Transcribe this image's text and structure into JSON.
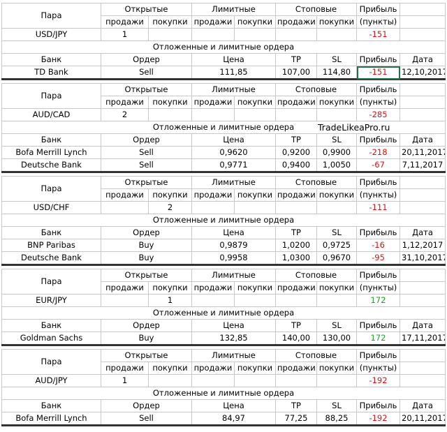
{
  "headers": {
    "pair": "Пара",
    "open": "Открытые",
    "limit": "Лимитные",
    "stop": "Стоповые",
    "profit": "Прибыль",
    "sell": "продажи",
    "buy": "покупки",
    "points": "(пункты)",
    "orders_title": "Отложенные и лимитные ордера",
    "bank": "Банк",
    "order": "Ордер",
    "price": "Цена",
    "tp": "TP",
    "sl": "SL",
    "date": "Дата"
  },
  "watermark": "TradeLikeaPro.ru",
  "blocks": [
    {
      "pair": "USD/JPY",
      "position": [
        1,
        null,
        null,
        null,
        null,
        null
      ],
      "profit": -151,
      "orders": [
        {
          "bank": "TD Bank",
          "side": "Sell",
          "price": "111,85",
          "tp": "107,00",
          "sl": "114,80",
          "profit": -151,
          "date": "12,10,2017"
        }
      ]
    },
    {
      "pair": "AUD/CAD",
      "position": [
        2,
        null,
        null,
        null,
        null,
        null
      ],
      "profit": -285,
      "orders": [
        {
          "bank": "Bofa Merrill Lynch",
          "side": "Sell",
          "price": "0,9620",
          "tp": "0,9200",
          "sl": "0,9900",
          "profit": -218,
          "date": "20,11,2017"
        },
        {
          "bank": "Deutsche Bank",
          "side": "Sell",
          "price": "0,9771",
          "tp": "0,9400",
          "sl": "1,0050",
          "profit": -67,
          "date": "7,11,2017"
        }
      ]
    },
    {
      "pair": "USD/CHF",
      "position": [
        null,
        2,
        null,
        null,
        null,
        null
      ],
      "profit": -111,
      "orders": [
        {
          "bank": "BNP Paribas",
          "side": "Buy",
          "price": "0,9879",
          "tp": "1,0200",
          "sl": "0,9725",
          "profit": -16,
          "date": "1,12,2017"
        },
        {
          "bank": "Deutsche Bank",
          "side": "Buy",
          "price": "0,9958",
          "tp": "1,0300",
          "sl": "0,9670",
          "profit": -95,
          "date": "31,10,2017"
        }
      ]
    },
    {
      "pair": "EUR/JPY",
      "position": [
        null,
        1,
        null,
        null,
        null,
        null
      ],
      "profit": 172,
      "orders": [
        {
          "bank": "Goldman Sachs",
          "side": "Buy",
          "price": "132,85",
          "tp": "140,00",
          "sl": "130,00",
          "profit": 172,
          "date": "17,11,2017"
        }
      ]
    },
    {
      "pair": "AUD/JPY",
      "position": [
        1,
        null,
        null,
        null,
        null,
        null
      ],
      "profit": -192,
      "orders": [
        {
          "bank": "Bofa Merrill Lynch",
          "side": "Sell",
          "price": "84,97",
          "tp": "77,25",
          "sl": "88,25",
          "profit": -192,
          "date": "20,11,2017"
        }
      ]
    }
  ]
}
